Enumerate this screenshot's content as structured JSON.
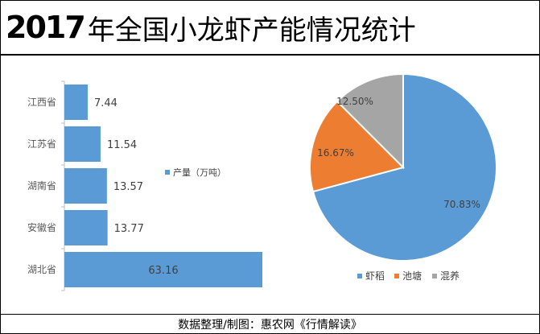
{
  "title": {
    "year": "2017",
    "text": "年全国小龙虾产能情况统计"
  },
  "footer": {
    "credit": "数据整理/制图：惠农网《行情解读》"
  },
  "colors": {
    "bar": "#5b9bd5",
    "pie_blue": "#5b9bd5",
    "pie_orange": "#ed7d31",
    "pie_gray": "#a5a5a5",
    "axis": "#bfbfbf",
    "text": "#404040",
    "ytick": "#595959"
  },
  "chart_data": [
    {
      "type": "bar",
      "orientation": "horizontal",
      "categories": [
        "江西省",
        "江苏省",
        "湖南省",
        "安徽省",
        "湖北省"
      ],
      "series": [
        {
          "name": "产量（万吨）",
          "values": [
            7.44,
            11.54,
            13.57,
            13.77,
            63.16
          ]
        }
      ],
      "legend": "inside-middle"
    },
    {
      "type": "pie",
      "labels": [
        "虾稻",
        "池塘",
        "混养"
      ],
      "values": [
        70.83,
        16.67,
        12.5
      ],
      "value_labels": [
        "70.83%",
        "16.67%",
        "12.50%"
      ],
      "legend": "bottom"
    }
  ]
}
